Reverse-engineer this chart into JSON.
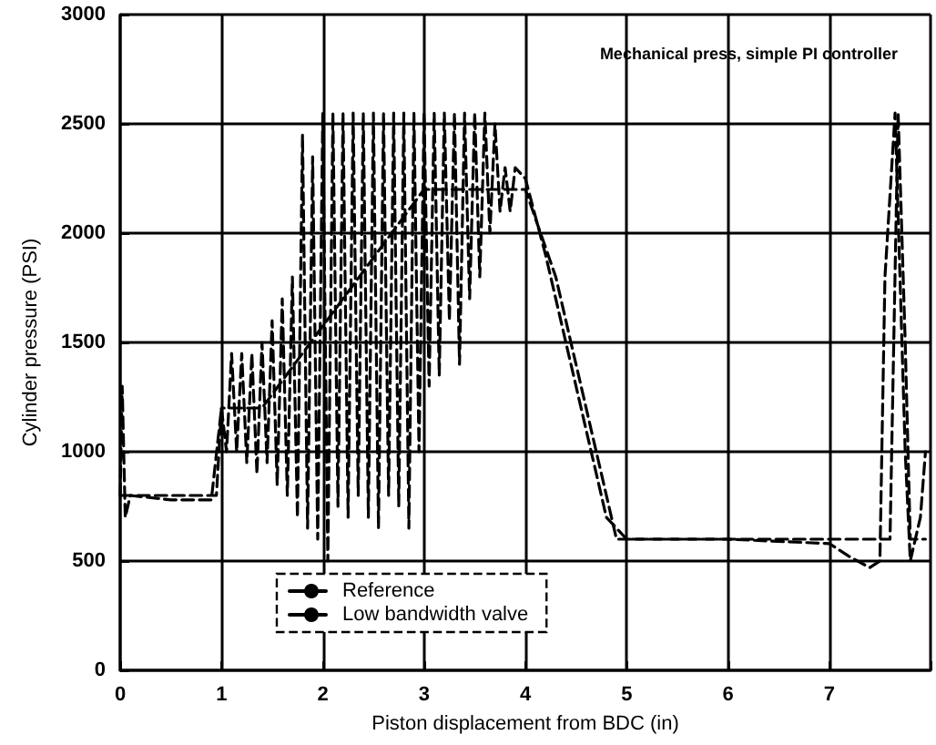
{
  "chart_data": {
    "type": "line",
    "title": "Mechanical press, simple PI controller",
    "xlabel": "Piston displacement from BDC (in)",
    "ylabel": "Cylinder pressure (PSI)",
    "xlim": [
      0,
      8
    ],
    "ylim": [
      0,
      3000
    ],
    "xticks": [
      0,
      1,
      2,
      3,
      4,
      5,
      6,
      7,
      {
        "value": 8,
        "label": null
      }
    ],
    "yticks": [
      0,
      500,
      1000,
      1500,
      2000,
      2500,
      3000
    ],
    "grid": true,
    "legend": "bottom left",
    "line_style": "dashed",
    "marker": "none",
    "series": [
      {
        "name": "Reference",
        "color": "#000000",
        "x": [
          0,
          0.95,
          1.0,
          1.4,
          3.0,
          4.0,
          4.3,
          4.9,
          7.5,
          7.6,
          7.68,
          7.75,
          7.8,
          7.95
        ],
        "values": [
          800,
          800,
          1200,
          1200,
          2200,
          2200,
          1800,
          600,
          600,
          600,
          2550,
          1500,
          600,
          600
        ]
      },
      {
        "name": "Low bandwidth valve",
        "color": "#000000",
        "x": [
          0,
          0.02,
          0.05,
          0.1,
          0.5,
          0.9,
          1.0,
          1.05,
          1.1,
          1.15,
          1.2,
          1.25,
          1.3,
          1.35,
          1.4,
          1.45,
          1.5,
          1.55,
          1.6,
          1.65,
          1.7,
          1.75,
          1.8,
          1.85,
          1.9,
          1.95,
          2.0,
          2.05,
          2.1,
          2.15,
          2.2,
          2.25,
          2.3,
          2.35,
          2.4,
          2.45,
          2.5,
          2.55,
          2.6,
          2.65,
          2.7,
          2.75,
          2.8,
          2.85,
          2.9,
          2.95,
          3.0,
          3.05,
          3.1,
          3.15,
          3.2,
          3.25,
          3.3,
          3.35,
          3.4,
          3.45,
          3.5,
          3.55,
          3.6,
          3.65,
          3.7,
          3.75,
          3.8,
          3.85,
          3.9,
          4.0,
          4.2,
          4.5,
          4.8,
          5.0,
          6.0,
          7.0,
          7.2,
          7.4,
          7.5,
          7.55,
          7.65,
          7.75,
          7.8,
          7.9,
          7.95
        ],
        "values": [
          800,
          1300,
          700,
          800,
          780,
          780,
          1200,
          1000,
          1450,
          1000,
          1450,
          950,
          1450,
          900,
          1500,
          950,
          1600,
          850,
          1700,
          800,
          1800,
          700,
          2450,
          650,
          2350,
          600,
          2550,
          500,
          2550,
          750,
          2550,
          700,
          2550,
          800,
          2550,
          700,
          2550,
          650,
          2550,
          800,
          2550,
          750,
          2550,
          650,
          2550,
          1000,
          2550,
          1300,
          2550,
          1350,
          2550,
          1600,
          2550,
          1400,
          2550,
          1700,
          2550,
          1800,
          2550,
          2000,
          2500,
          2100,
          2300,
          2100,
          2300,
          2250,
          1900,
          1300,
          700,
          600,
          600,
          580,
          520,
          470,
          500,
          1800,
          2550,
          1000,
          500,
          700,
          1000
        ]
      }
    ]
  }
}
